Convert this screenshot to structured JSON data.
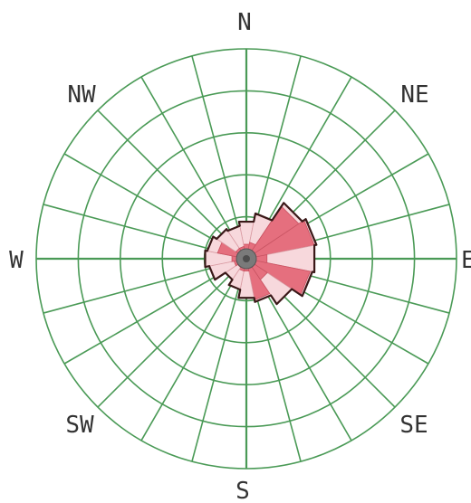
{
  "chart_data": {
    "type": "wind-rose",
    "title": "",
    "sectors": 16,
    "rings": 5,
    "radius_max": 5,
    "direction_labels": [
      {
        "name": "N",
        "label": "N",
        "bearing": 0
      },
      {
        "name": "NE",
        "label": "NE",
        "bearing": 45
      },
      {
        "name": "E",
        "label": "E",
        "bearing": 90
      },
      {
        "name": "SE",
        "label": "SE",
        "bearing": 135
      },
      {
        "name": "S",
        "label": "S",
        "bearing": 180
      },
      {
        "name": "SW",
        "label": "SW",
        "bearing": 225
      },
      {
        "name": "W",
        "label": "W",
        "bearing": 270
      },
      {
        "name": "NW",
        "label": "NW",
        "bearing": 315
      }
    ],
    "values": [
      {
        "dir": "N",
        "bearing": 0,
        "outer": 0.9,
        "inner": 0.35
      },
      {
        "dir": "NNE",
        "bearing": 22.5,
        "outer": 1.1,
        "inner": 0.4
      },
      {
        "dir": "NE",
        "bearing": 45,
        "outer": 1.6,
        "inner": 1.5
      },
      {
        "dir": "ENE",
        "bearing": 67.5,
        "outer": 1.7,
        "inner": 1.65
      },
      {
        "dir": "E",
        "bearing": 90,
        "outer": 1.65,
        "inner": 0.5
      },
      {
        "dir": "ESE",
        "bearing": 112.5,
        "outer": 1.6,
        "inner": 1.55
      },
      {
        "dir": "SE",
        "bearing": 135,
        "outer": 1.3,
        "inner": 0.6
      },
      {
        "dir": "SSE",
        "bearing": 157.5,
        "outer": 1.05,
        "inner": 1.0
      },
      {
        "dir": "S",
        "bearing": 180,
        "outer": 0.95,
        "inner": 0.3
      },
      {
        "dir": "SSW",
        "bearing": 202.5,
        "outer": 0.75,
        "inner": 0.3
      },
      {
        "dir": "SW",
        "bearing": 225,
        "outer": 0.6,
        "inner": 0.25
      },
      {
        "dir": "WSW",
        "bearing": 247.5,
        "outer": 0.9,
        "inner": 0.3
      },
      {
        "dir": "W",
        "bearing": 270,
        "outer": 1.0,
        "inner": 0.35
      },
      {
        "dir": "WNW",
        "bearing": 292.5,
        "outer": 0.95,
        "inner": 0.7
      },
      {
        "dir": "NW",
        "bearing": 315,
        "outer": 0.85,
        "inner": 0.3
      },
      {
        "dir": "NNW",
        "bearing": 337.5,
        "outer": 0.8,
        "inner": 0.3
      }
    ],
    "colors": {
      "grid": "#4a9a56",
      "outline": "#3a1818",
      "dark_fill": "#e56f7e",
      "light_fill": "#f7d8dc",
      "center": "#7a7a7a",
      "label": "#333333"
    }
  }
}
